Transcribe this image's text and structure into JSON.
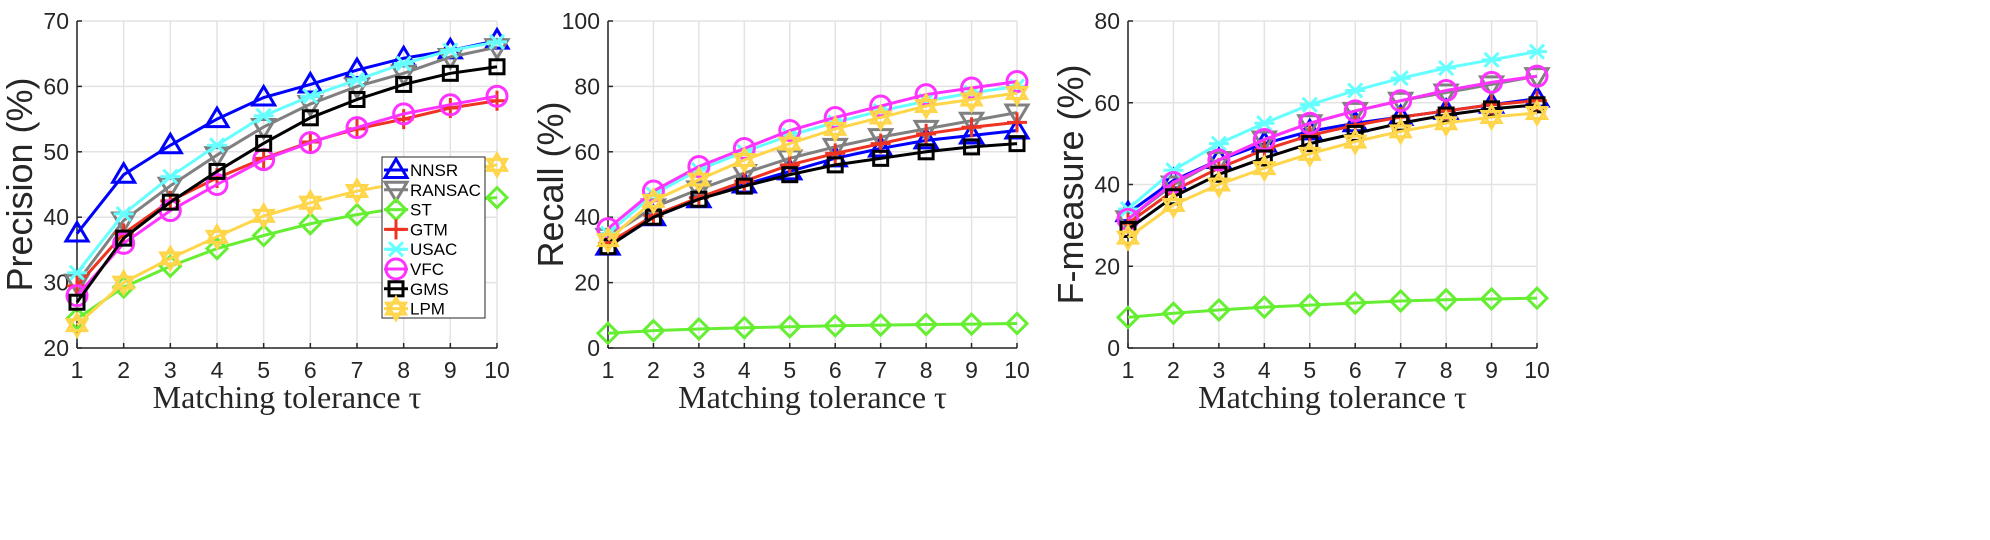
{
  "chart_data": [
    {
      "type": "line",
      "xlabel": "Matching tolerance τ",
      "ylabel": "Precision (%)",
      "x": [
        1,
        2,
        3,
        4,
        5,
        6,
        7,
        8,
        9,
        10
      ],
      "xlim": [
        1,
        10
      ],
      "ylim": [
        20,
        70
      ],
      "xticks": [
        "1",
        "2",
        "3",
        "4",
        "5",
        "6",
        "7",
        "8",
        "9",
        "10"
      ],
      "yticks": [
        "20",
        "30",
        "40",
        "50",
        "60",
        "70"
      ],
      "grid": true,
      "legend": "inside-right",
      "series": [
        {
          "name": "NNSR",
          "color": "#0000ff",
          "marker": "triangle-up",
          "values": [
            37.5,
            46.5,
            51,
            55,
            58.3,
            60.3,
            62.5,
            64.3,
            65.5,
            67
          ]
        },
        {
          "name": "RANSAC",
          "color": "#808080",
          "marker": "triangle-down",
          "values": [
            30,
            39.5,
            44.8,
            49.5,
            53.8,
            57.3,
            60,
            62,
            64.5,
            66
          ]
        },
        {
          "name": "ST",
          "color": "#66ee33",
          "marker": "diamond",
          "values": [
            24.5,
            29.3,
            32.5,
            35.2,
            37.2,
            39,
            40.4,
            41.5,
            42.5,
            43
          ]
        },
        {
          "name": "GTM",
          "color": "#ee3322",
          "marker": "plus",
          "values": [
            29.5,
            37.5,
            42.5,
            46,
            49,
            51.5,
            53.5,
            55,
            56.7,
            57.8
          ]
        },
        {
          "name": "USAC",
          "color": "#66ffff",
          "marker": "asterisk",
          "values": [
            31.5,
            40.5,
            46.2,
            51,
            55.5,
            58.5,
            61,
            63.5,
            65.5,
            66.8
          ]
        },
        {
          "name": "VFC",
          "color": "#ff33ff",
          "marker": "circle",
          "values": [
            28,
            36,
            41,
            45,
            48.8,
            51.4,
            53.7,
            55.8,
            57.2,
            58.5
          ]
        },
        {
          "name": "GMS",
          "color": "#000000",
          "marker": "square",
          "values": [
            27,
            36.8,
            42.3,
            47,
            51.3,
            55.2,
            58,
            60.3,
            62,
            63
          ]
        },
        {
          "name": "LPM",
          "color": "#ffd54a",
          "marker": "hexagram",
          "values": [
            23.5,
            30,
            33.7,
            37,
            40.2,
            42.2,
            44,
            45.3,
            46.8,
            48
          ]
        }
      ]
    },
    {
      "type": "line",
      "xlabel": "Matching tolerance τ",
      "ylabel": "Recall (%)",
      "x": [
        1,
        2,
        3,
        4,
        5,
        6,
        7,
        8,
        9,
        10
      ],
      "xlim": [
        1,
        10
      ],
      "ylim": [
        0,
        100
      ],
      "xticks": [
        "1",
        "2",
        "3",
        "4",
        "5",
        "6",
        "7",
        "8",
        "9",
        "10"
      ],
      "yticks": [
        "0",
        "20",
        "40",
        "60",
        "80",
        "100"
      ],
      "grid": true,
      "series": [
        {
          "name": "NNSR",
          "color": "#0000ff",
          "marker": "triangle-up",
          "values": [
            31,
            40,
            45.5,
            50,
            54,
            58,
            61,
            63.5,
            65,
            66.5
          ]
        },
        {
          "name": "RANSAC",
          "color": "#808080",
          "marker": "triangle-down",
          "values": [
            34,
            43,
            48.5,
            53.5,
            58,
            61.5,
            64.5,
            67,
            69.5,
            72
          ]
        },
        {
          "name": "ST",
          "color": "#66ee33",
          "marker": "diamond",
          "values": [
            4.5,
            5.3,
            5.8,
            6.2,
            6.5,
            6.8,
            7,
            7.2,
            7.3,
            7.5
          ]
        },
        {
          "name": "GTM",
          "color": "#ee3322",
          "marker": "plus",
          "values": [
            32,
            40.5,
            46,
            51,
            56,
            59.5,
            62.5,
            65.5,
            67.5,
            69
          ]
        },
        {
          "name": "USAC",
          "color": "#66ffff",
          "marker": "asterisk",
          "values": [
            35,
            47,
            54.5,
            60,
            65,
            69,
            72.5,
            75.5,
            78,
            80
          ]
        },
        {
          "name": "VFC",
          "color": "#ff33ff",
          "marker": "circle",
          "values": [
            36.5,
            48,
            55.5,
            61,
            66.5,
            70.5,
            74,
            77.5,
            79.5,
            81.5
          ]
        },
        {
          "name": "GMS",
          "color": "#000000",
          "marker": "square",
          "values": [
            31,
            40,
            45.5,
            49.5,
            53,
            56,
            58,
            60,
            61.5,
            62.5
          ]
        },
        {
          "name": "LPM",
          "color": "#ffd54a",
          "marker": "hexagram",
          "values": [
            33,
            45,
            51.5,
            57.5,
            62.5,
            67,
            70.5,
            74,
            76,
            78
          ]
        }
      ]
    },
    {
      "type": "line",
      "xlabel": "Matching tolerance τ",
      "ylabel": "F-measure (%)",
      "x": [
        1,
        2,
        3,
        4,
        5,
        6,
        7,
        8,
        9,
        10
      ],
      "xlim": [
        1,
        10
      ],
      "ylim": [
        0,
        80
      ],
      "xticks": [
        "1",
        "2",
        "3",
        "4",
        "5",
        "6",
        "7",
        "8",
        "9",
        "10"
      ],
      "yticks": [
        "0",
        "20",
        "40",
        "60",
        "80"
      ],
      "grid": true,
      "series": [
        {
          "name": "NNSR",
          "color": "#0000ff",
          "marker": "triangle-up",
          "values": [
            33,
            41,
            46,
            50,
            53,
            55,
            56.5,
            58,
            59.5,
            61
          ]
        },
        {
          "name": "RANSAC",
          "color": "#808080",
          "marker": "triangle-down",
          "values": [
            31.5,
            40,
            46,
            51,
            55,
            58,
            60.5,
            62.5,
            64.5,
            66.5
          ]
        },
        {
          "name": "ST",
          "color": "#66ee33",
          "marker": "diamond",
          "values": [
            7.5,
            8.5,
            9.3,
            10,
            10.5,
            11,
            11.5,
            11.8,
            12,
            12.2
          ]
        },
        {
          "name": "GTM",
          "color": "#ee3322",
          "marker": "plus",
          "values": [
            30.5,
            38.5,
            44,
            48.5,
            52,
            54.5,
            56.5,
            58,
            59.5,
            60.5
          ]
        },
        {
          "name": "USAC",
          "color": "#66ffff",
          "marker": "asterisk",
          "values": [
            34,
            43.5,
            50,
            55,
            59.5,
            63,
            66,
            68.5,
            70.5,
            72.5
          ]
        },
        {
          "name": "VFC",
          "color": "#ff33ff",
          "marker": "circle",
          "values": [
            31.5,
            40.5,
            46,
            51,
            55,
            58,
            60.5,
            63,
            65,
            66.5
          ]
        },
        {
          "name": "GMS",
          "color": "#000000",
          "marker": "square",
          "values": [
            29,
            37,
            42.5,
            46.5,
            50,
            52.5,
            55,
            57,
            58.5,
            59.5
          ]
        },
        {
          "name": "LPM",
          "color": "#ffd54a",
          "marker": "hexagram",
          "values": [
            27,
            35,
            40,
            44,
            47.5,
            50.5,
            53,
            55,
            56.5,
            57.5
          ]
        }
      ]
    }
  ]
}
